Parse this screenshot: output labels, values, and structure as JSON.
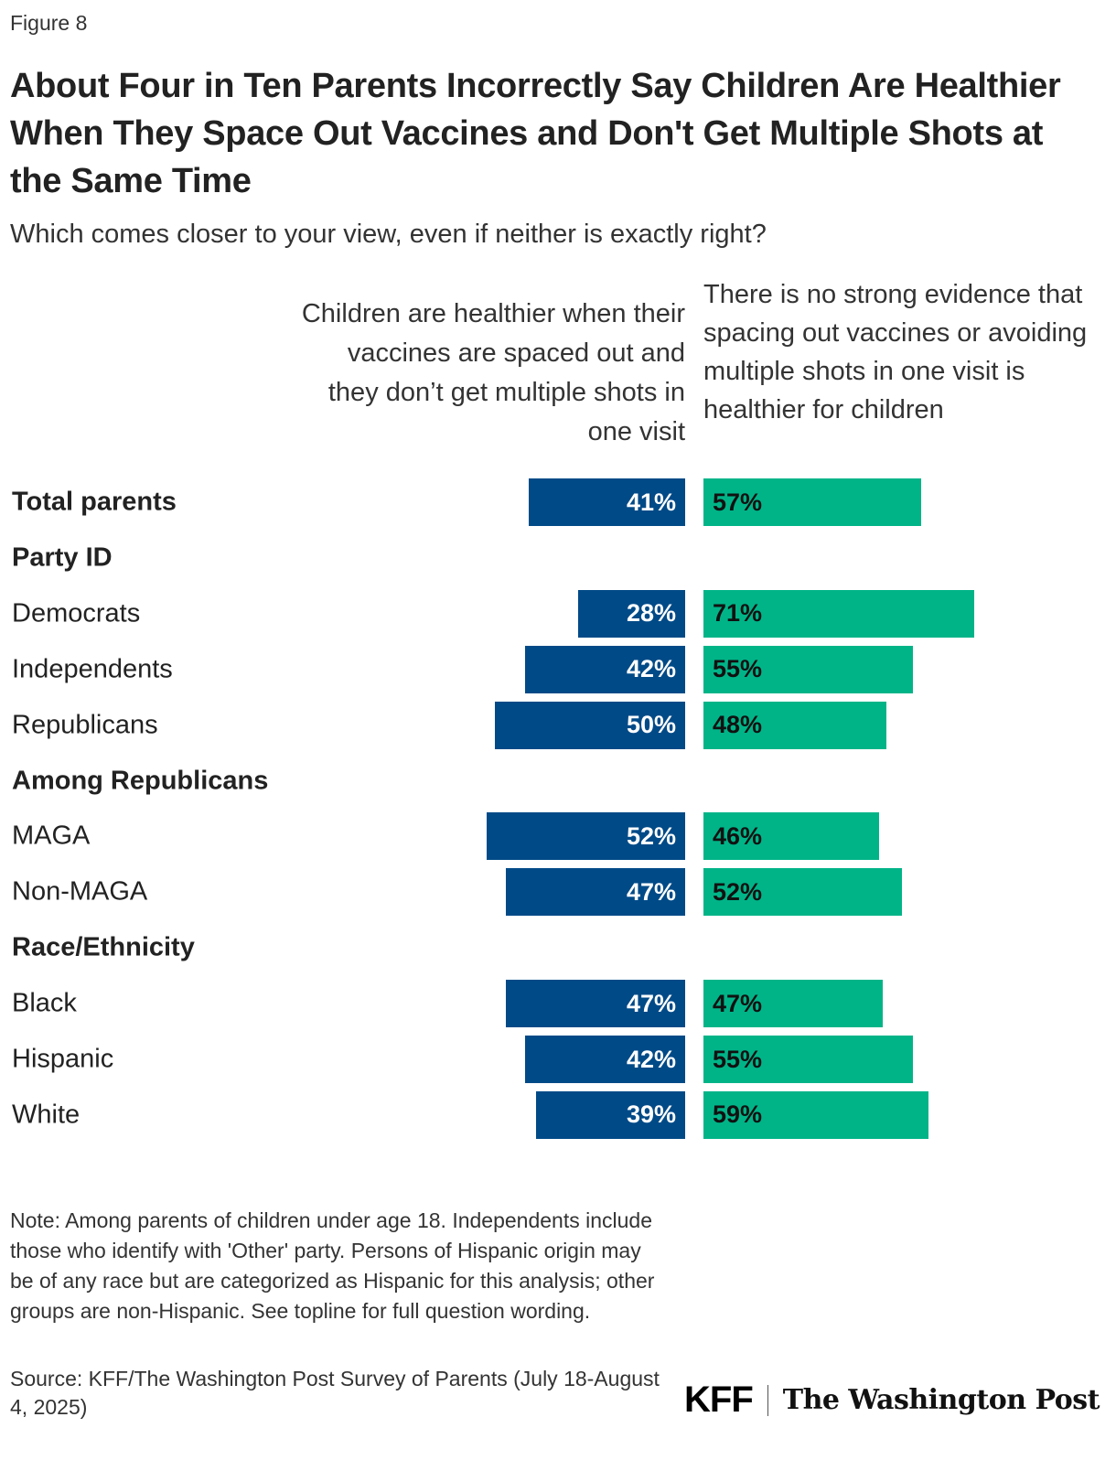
{
  "figure_label": "Figure 8",
  "chart_data": {
    "type": "bar",
    "title": "About Four in Ten Parents Incorrectly Say Children Are Healthier When They Space Out Vaccines and Don't Get Multiple Shots at the Same Time",
    "subtitle": "Which comes closer to your view, even if neither is exactly right?",
    "orientation": "horizontal-diverging",
    "series": [
      {
        "name": "Children are healthier when their vaccines are spaced out and they don’t get multiple shots in one visit",
        "color": "#004a87"
      },
      {
        "name": "There is no strong evidence that spacing out vaccines or avoiding multiple shots in one visit is healthier for children",
        "color": "#00b488"
      }
    ],
    "rows": [
      {
        "label": "Total parents",
        "header": false,
        "bold": true,
        "values": [
          41,
          57
        ]
      },
      {
        "label": "Party ID",
        "header": true
      },
      {
        "label": "Democrats",
        "values": [
          28,
          71
        ]
      },
      {
        "label": "Independents",
        "values": [
          42,
          55
        ]
      },
      {
        "label": "Republicans",
        "values": [
          50,
          48
        ]
      },
      {
        "label": "Among Republicans",
        "header": true
      },
      {
        "label": "MAGA",
        "values": [
          52,
          46
        ]
      },
      {
        "label": "Non-MAGA",
        "values": [
          47,
          52
        ]
      },
      {
        "label": "Race/Ethnicity",
        "header": true
      },
      {
        "label": "Black",
        "values": [
          47,
          47
        ]
      },
      {
        "label": "Hispanic",
        "values": [
          42,
          55
        ]
      },
      {
        "label": "White",
        "values": [
          39,
          59
        ]
      }
    ],
    "value_suffix": "%",
    "grid": false
  },
  "note": "Note: Among parents of children under age 18. Independents include those who identify with 'Other' party. Persons of Hispanic origin may be of any race but are categorized as Hispanic for this analysis; other groups are non-Hispanic. See topline for full question wording.",
  "source": "Source: KFF/The Washington Post Survey of Parents (July 18-August 4, 2025)",
  "logos": {
    "kff": "KFF",
    "wapo": "The Washington Post"
  }
}
